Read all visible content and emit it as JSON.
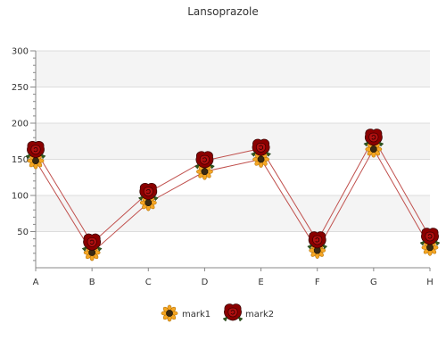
{
  "chart_data": {
    "type": "line",
    "title": "Lansoprazole",
    "categories": [
      "A",
      "B",
      "C",
      "D",
      "E",
      "F",
      "G",
      "H"
    ],
    "series": [
      {
        "name": "mark1",
        "values": [
          148,
          21,
          90,
          133,
          150,
          24,
          164,
          28
        ],
        "marker": "sunflower-icon"
      },
      {
        "name": "mark2",
        "values": [
          162,
          34,
          104,
          148,
          165,
          37,
          179,
          42
        ],
        "marker": "rose-icon"
      }
    ],
    "ylim": [
      0,
      300
    ],
    "yticks": [
      50,
      100,
      150,
      200,
      250,
      300
    ],
    "grid": true,
    "legend": "bottom-center",
    "colors": {
      "line": "#c0504d",
      "band": "#f4f4f4",
      "gridline": "#dddddd",
      "axis": "#888888",
      "sunflower_petal": "#f5a623",
      "sunflower_center": "#3a2a12",
      "rose": "#8b0000"
    }
  }
}
